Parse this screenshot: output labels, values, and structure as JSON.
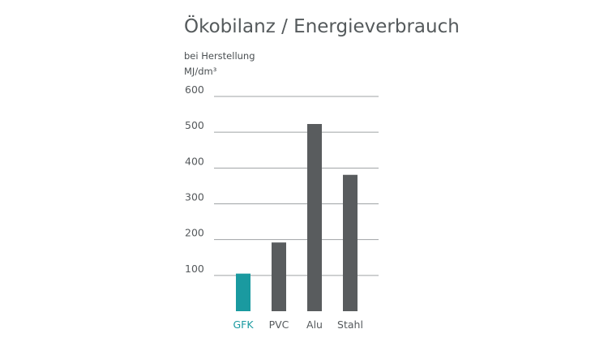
{
  "chart_data": {
    "type": "bar",
    "title": "Ökobilanz / Energieverbrauch",
    "subtitle": "bei Herstellung",
    "ylabel": "MJ/dm³",
    "xlabel": "",
    "categories": [
      "GFK",
      "PVC",
      "Alu",
      "Stahl"
    ],
    "values": [
      105,
      192,
      523,
      381
    ],
    "ylim": [
      0,
      600
    ],
    "yticks": [
      100,
      200,
      300,
      400,
      500,
      600
    ],
    "grid": true,
    "colors": {
      "highlight": "#1a9aa0",
      "default": "#595c5e",
      "grid": "#9fa3a5"
    },
    "highlight_index": 0
  }
}
